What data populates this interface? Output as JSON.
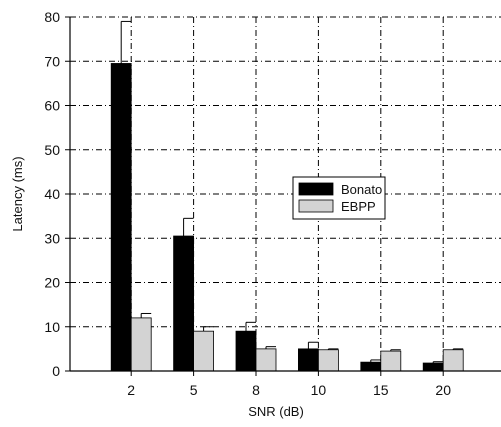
{
  "chart_data": {
    "type": "bar",
    "categories": [
      "2",
      "5",
      "8",
      "10",
      "15",
      "20"
    ],
    "series": [
      {
        "name": "Bonato",
        "values": [
          69.5,
          30.5,
          9.0,
          5.0,
          2.0,
          1.8
        ],
        "error": [
          9.5,
          4.0,
          2.0,
          1.5,
          0.5,
          0.3
        ],
        "color": "#000000"
      },
      {
        "name": "EBPP",
        "values": [
          12.0,
          9.0,
          5.0,
          4.8,
          4.5,
          4.8
        ],
        "error": [
          1.0,
          1.0,
          0.5,
          0.2,
          0.3,
          0.2
        ],
        "color": "#d3d3d3"
      }
    ],
    "xlabel": "SNR (dB)",
    "ylabel": "Latency (ms)",
    "ylim": [
      0,
      80
    ],
    "yticks": [
      0,
      10,
      20,
      30,
      40,
      50,
      60,
      70,
      80
    ],
    "grid": true,
    "legend_position": "center-right"
  }
}
